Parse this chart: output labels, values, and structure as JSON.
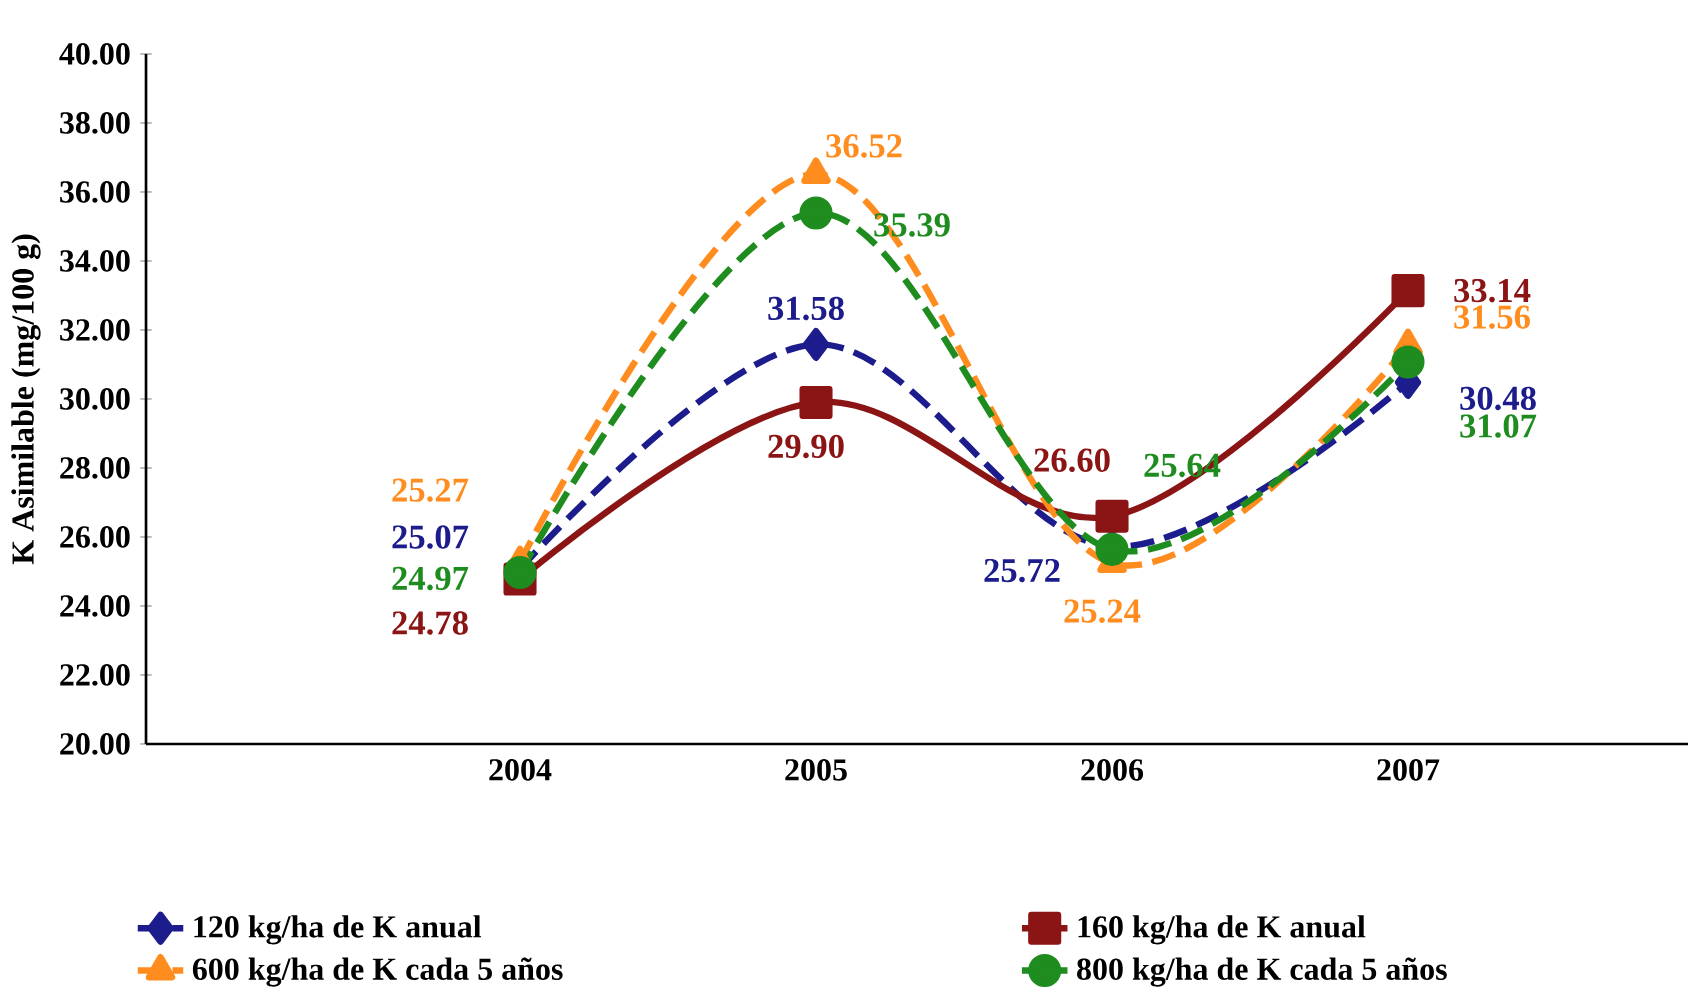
{
  "chart_data": {
    "type": "line",
    "ylabel": "K Asimilable (mg/100 g)",
    "categories": [
      "2004",
      "2005",
      "2006",
      "2007"
    ],
    "series": [
      {
        "name": "120 kg/ha de K anual",
        "color": "#1c1c8c",
        "marker": "diamond",
        "line_style": "dashed",
        "values": [
          25.07,
          31.58,
          25.72,
          30.48
        ],
        "value_labels": [
          "25.07",
          "31.58",
          "25.72",
          "30.48"
        ]
      },
      {
        "name": "160 kg/ha de K anual",
        "color": "#8b1414",
        "marker": "square",
        "line_style": "solid",
        "values": [
          24.78,
          29.9,
          26.6,
          33.14
        ],
        "value_labels": [
          "24.78",
          "29.90",
          "26.60",
          "33.14"
        ]
      },
      {
        "name": "600 kg/ha de K cada 5 años",
        "color": "#ff8c1e",
        "marker": "triangle",
        "line_style": "dashed",
        "values": [
          25.27,
          36.52,
          25.24,
          31.56
        ],
        "value_labels": [
          "25.27",
          "36.52",
          "25.24",
          "31.56"
        ]
      },
      {
        "name": "800 kg/ha de K cada 5 años",
        "color": "#1e8c1e",
        "marker": "circle",
        "line_style": "dashed",
        "values": [
          24.97,
          35.39,
          25.64,
          31.07
        ],
        "value_labels": [
          "24.97",
          "35.39",
          "25.64",
          "31.07"
        ]
      }
    ],
    "ylim": [
      20,
      40
    ],
    "yticks": [
      {
        "value": 20,
        "label": "20.00"
      },
      {
        "value": 22,
        "label": "22.00"
      },
      {
        "value": 24,
        "label": "24.00"
      },
      {
        "value": 26,
        "label": "26.00"
      },
      {
        "value": 28,
        "label": "28.00"
      },
      {
        "value": 30,
        "label": "30.00"
      },
      {
        "value": 32,
        "label": "32.00"
      },
      {
        "value": 34,
        "label": "34.00"
      },
      {
        "value": 36,
        "label": "36.00"
      },
      {
        "value": 38,
        "label": "38.00"
      },
      {
        "value": 40,
        "label": "40.00"
      }
    ],
    "grid": false,
    "legend": "bottom"
  }
}
